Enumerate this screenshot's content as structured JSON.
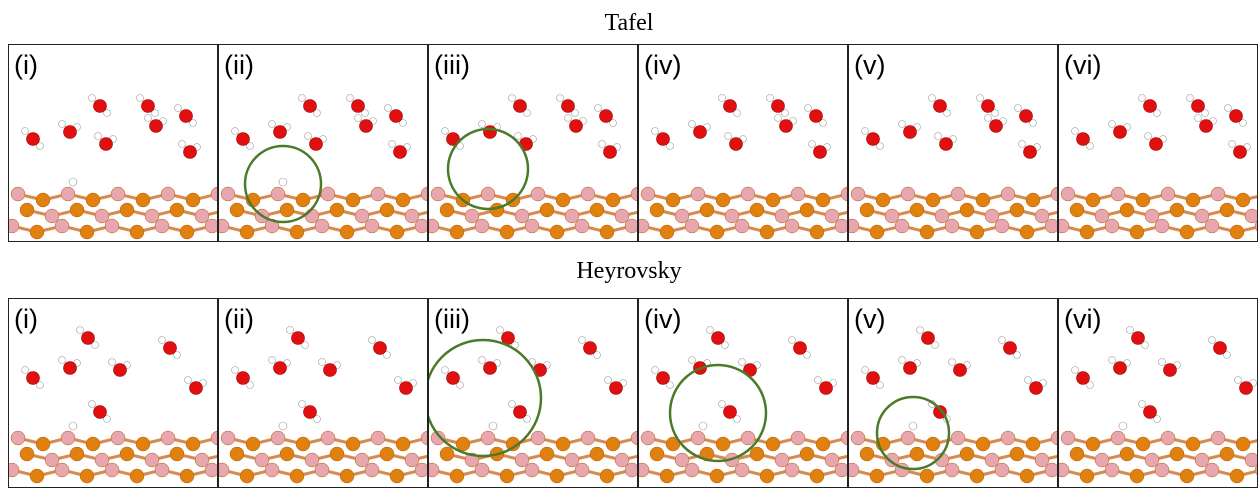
{
  "rows": [
    {
      "title": "Tafel",
      "panels": [
        "(i)",
        "(ii)",
        "(iii)",
        "(iv)",
        "(v)",
        "(vi)"
      ]
    },
    {
      "title": "Heyrovsky",
      "panels": [
        "(i)",
        "(ii)",
        "(iii)",
        "(iv)",
        "(v)",
        "(vi)"
      ]
    }
  ]
}
